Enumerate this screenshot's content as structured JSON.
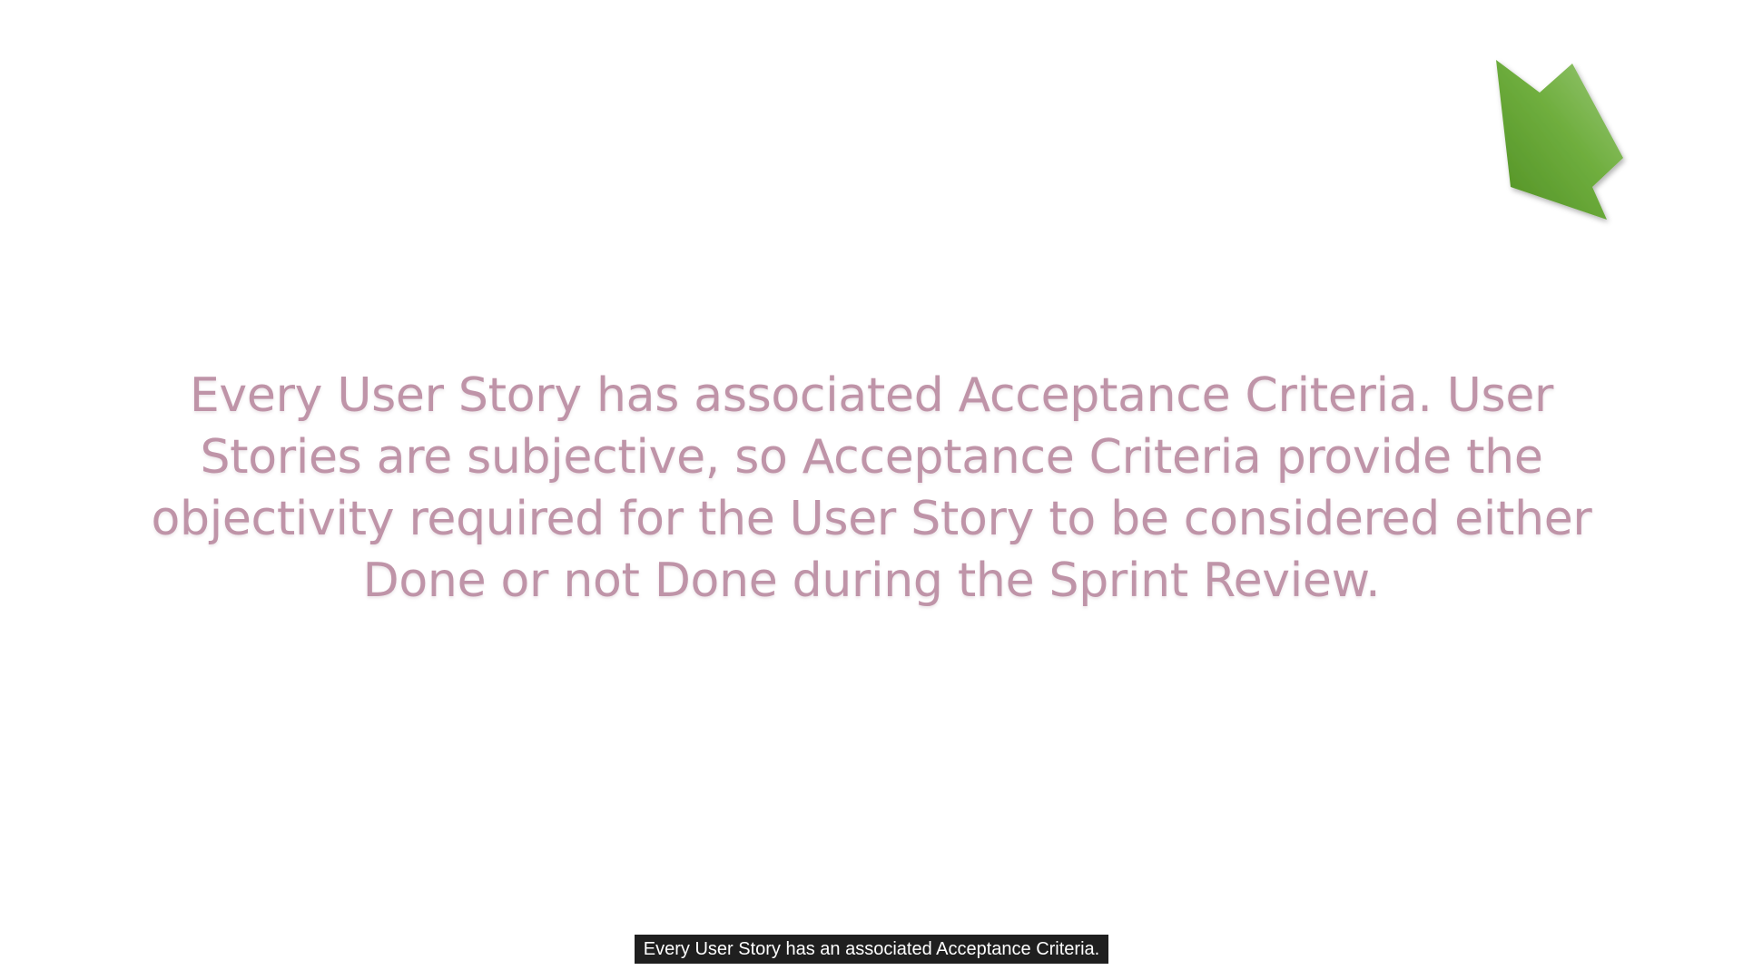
{
  "slide": {
    "body_text": "Every User Story has associated Acceptance Criteria. User Stories are subjective, so Acceptance Criteria provide the objectivity required for the User Story to be considered either Done or not Done during the Sprint Review.",
    "text_color": "#bf94a8",
    "background_color": "#ffffff"
  },
  "decoration": {
    "icon": "arrow-down-left-icon",
    "color": "#6aaa3a"
  },
  "subtitle": {
    "text": "Every User Story has an associated Acceptance Criteria."
  }
}
